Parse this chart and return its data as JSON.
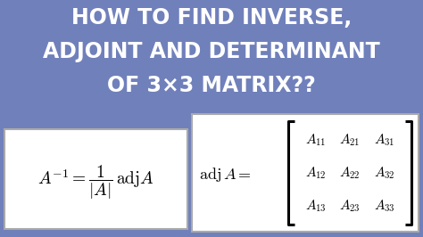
{
  "bg_color": "#7080BB",
  "title_line1": "HOW TO FIND INVERSE,",
  "title_line2": "ADJOINT AND DETERMINANT",
  "title_line3": "OF 3×3 MATRIX??",
  "title_color": "#FFFFFF",
  "title_fontsize": 17,
  "title_fontweight": "bold",
  "box1_color": "#FFFFFF",
  "box2_color": "#FFFFFF",
  "matrix_entries": [
    [
      "$A_{11}$",
      "$A_{21}$",
      "$A_{31}$"
    ],
    [
      "$A_{12}$",
      "$A_{22}$",
      "$A_{32}$"
    ],
    [
      "$A_{13}$",
      "$A_{23}$",
      "$A_{33}$"
    ]
  ]
}
